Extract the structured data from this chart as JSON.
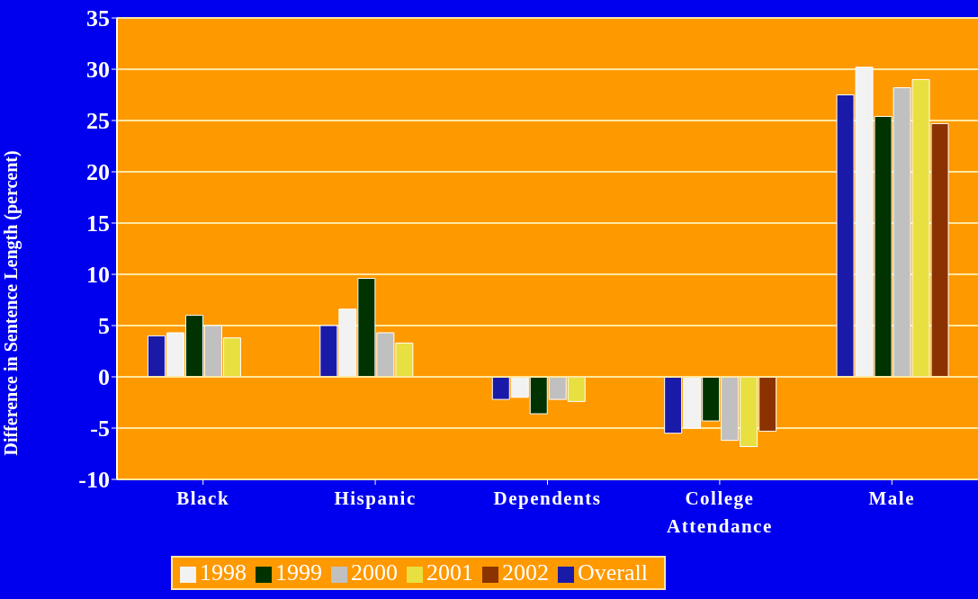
{
  "chart_data": {
    "type": "bar",
    "ylabel": "Difference in Sentence Length (percent)",
    "categories": [
      "Black",
      "Hispanic",
      "Dependents",
      "College Attendance",
      "Male"
    ],
    "series": [
      {
        "name": "Overall",
        "color": "#1a1aa8",
        "values": [
          4,
          5,
          -2.2,
          -5.5,
          27.5
        ]
      },
      {
        "name": "1998",
        "color": "#f2f2f2",
        "values": [
          4.3,
          6.6,
          -2,
          -5,
          30.2
        ]
      },
      {
        "name": "1999",
        "color": "#003300",
        "values": [
          6,
          9.6,
          -3.6,
          -4.3,
          25.4
        ]
      },
      {
        "name": "2000",
        "color": "#c0c0c0",
        "values": [
          5,
          4.3,
          -2.2,
          -6.2,
          28.2
        ]
      },
      {
        "name": "2001",
        "color": "#e8e040",
        "values": [
          3.8,
          3.3,
          -2.4,
          -6.8,
          29
        ]
      },
      {
        "name": "2002",
        "color": "#8b3300",
        "values": [
          null,
          null,
          null,
          -5.3,
          24.7
        ]
      }
    ],
    "ylim": [
      -10,
      35
    ],
    "yticks": [
      -10,
      -5,
      0,
      5,
      10,
      15,
      20,
      25,
      30,
      35
    ],
    "grid": "y",
    "legend": "bottom"
  }
}
